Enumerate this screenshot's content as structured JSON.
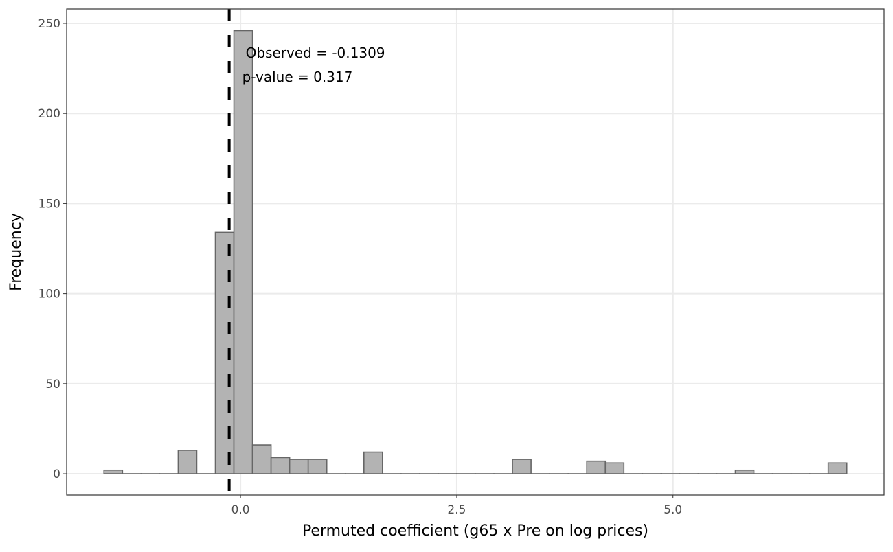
{
  "chart_data": {
    "type": "bar",
    "subtype": "histogram",
    "xlabel": "Permuted coefficient (g65 x Pre on log prices)",
    "ylabel": "Frequency",
    "xlim": [
      -2.01,
      7.44
    ],
    "ylim": [
      -11.8,
      258
    ],
    "x_ticks": [
      0.0,
      2.5,
      5.0
    ],
    "x_tick_labels": [
      "0.0",
      "2.5",
      "5.0"
    ],
    "y_ticks": [
      0,
      50,
      100,
      150,
      200,
      250
    ],
    "y_tick_labels": [
      "0",
      "50",
      "100",
      "150",
      "200",
      "250"
    ],
    "grid": true,
    "bin_start": -1.579,
    "bin_width": 0.2147,
    "counts": [
      2,
      0,
      0,
      0,
      13,
      0,
      134,
      246,
      16,
      9,
      8,
      8,
      0,
      0,
      12,
      0,
      0,
      0,
      0,
      0,
      0,
      0,
      8,
      0,
      0,
      0,
      7,
      6,
      0,
      0,
      0,
      0,
      0,
      0,
      2,
      0,
      0,
      0,
      0,
      6
    ],
    "bar_fill": "#b3b3b3",
    "bar_stroke": "#666666",
    "observed_line": {
      "x": -0.1309,
      "style": "dashed",
      "color": "#000000"
    },
    "annotations": [
      "Observed = -0.1309",
      "p-value = 0.317"
    ]
  }
}
